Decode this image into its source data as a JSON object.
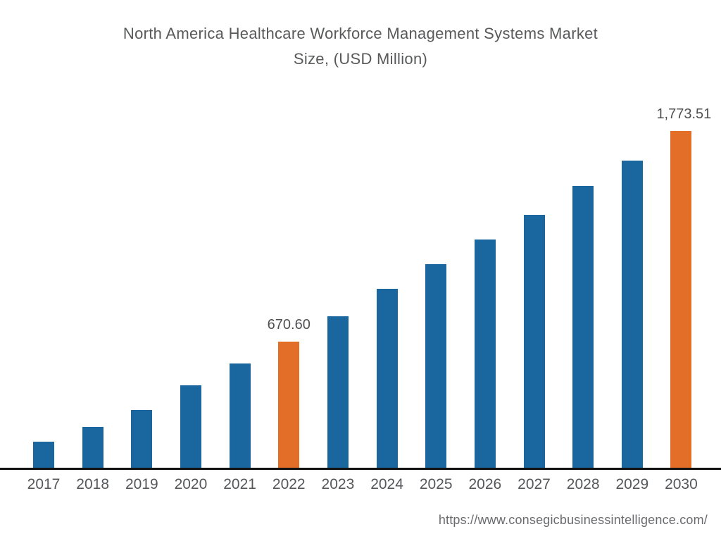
{
  "header": {
    "title_lines": [
      "North America Healthcare Workforce Management Systems Market",
      "Size, (USD Million)"
    ]
  },
  "footer": {
    "source_url": "https://www.consegicbusinessintelligence.com/"
  },
  "chart_data": {
    "type": "bar",
    "title": "North America Healthcare Workforce Management Systems Market Size, (USD Million)",
    "unit": "USD Million",
    "categories": [
      "2017",
      "2018",
      "2019",
      "2020",
      "2021",
      "2022",
      "2023",
      "2024",
      "2025",
      "2026",
      "2027",
      "2028",
      "2029",
      "2030"
    ],
    "values": [
      145,
      220,
      310,
      440,
      555,
      670.6,
      800,
      945,
      1075,
      1205,
      1335,
      1485,
      1620,
      1773.51
    ],
    "labeled_values": {
      "2022": "670.60",
      "2030": "1,773.51"
    },
    "highlighted_categories": [
      "2022",
      "2030"
    ],
    "colors": {
      "bar": "#1A669E",
      "highlight": "#E26E28",
      "axis_line": "#111111"
    },
    "xlabel": "",
    "ylabel": "",
    "ylim": [
      0,
      1900
    ],
    "grid": false,
    "legend": false,
    "y_axis_visible": false
  }
}
